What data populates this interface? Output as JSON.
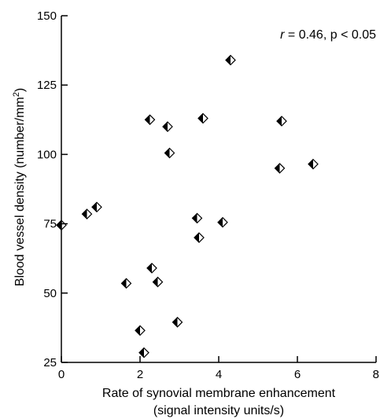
{
  "chart_data": {
    "type": "scatter",
    "xlabel_line1": "Rate of synovial membrane enhancement",
    "xlabel_line2": "(signal intensity units/s)",
    "ylabel_main": "Blood vessel density (number/mm",
    "ylabel_sup": "2",
    "ylabel_close": ")",
    "xlim": [
      0,
      8
    ],
    "ylim": [
      25,
      150
    ],
    "x_ticks": [
      "0",
      "2",
      "4",
      "6",
      "8"
    ],
    "y_ticks": [
      "25",
      "50",
      "75",
      "100",
      "125",
      "150"
    ],
    "annotation": {
      "r_symbol": "r",
      "text": " = 0.46, p < 0.05"
    },
    "grid": false,
    "marker": "half-filled diamond",
    "points": [
      {
        "x": 0.0,
        "y": 74.5
      },
      {
        "x": 0.65,
        "y": 78.5
      },
      {
        "x": 0.9,
        "y": 81.0
      },
      {
        "x": 1.65,
        "y": 53.5
      },
      {
        "x": 2.0,
        "y": 36.5
      },
      {
        "x": 2.1,
        "y": 28.5
      },
      {
        "x": 2.25,
        "y": 112.5
      },
      {
        "x": 2.3,
        "y": 59.0
      },
      {
        "x": 2.45,
        "y": 54.0
      },
      {
        "x": 2.7,
        "y": 110.0
      },
      {
        "x": 2.75,
        "y": 100.5
      },
      {
        "x": 2.95,
        "y": 39.5
      },
      {
        "x": 3.45,
        "y": 77.0
      },
      {
        "x": 3.5,
        "y": 70.0
      },
      {
        "x": 3.6,
        "y": 113.0
      },
      {
        "x": 4.1,
        "y": 75.5
      },
      {
        "x": 4.3,
        "y": 134.0
      },
      {
        "x": 5.55,
        "y": 95.0
      },
      {
        "x": 5.6,
        "y": 112.0
      },
      {
        "x": 6.4,
        "y": 96.5
      }
    ]
  }
}
